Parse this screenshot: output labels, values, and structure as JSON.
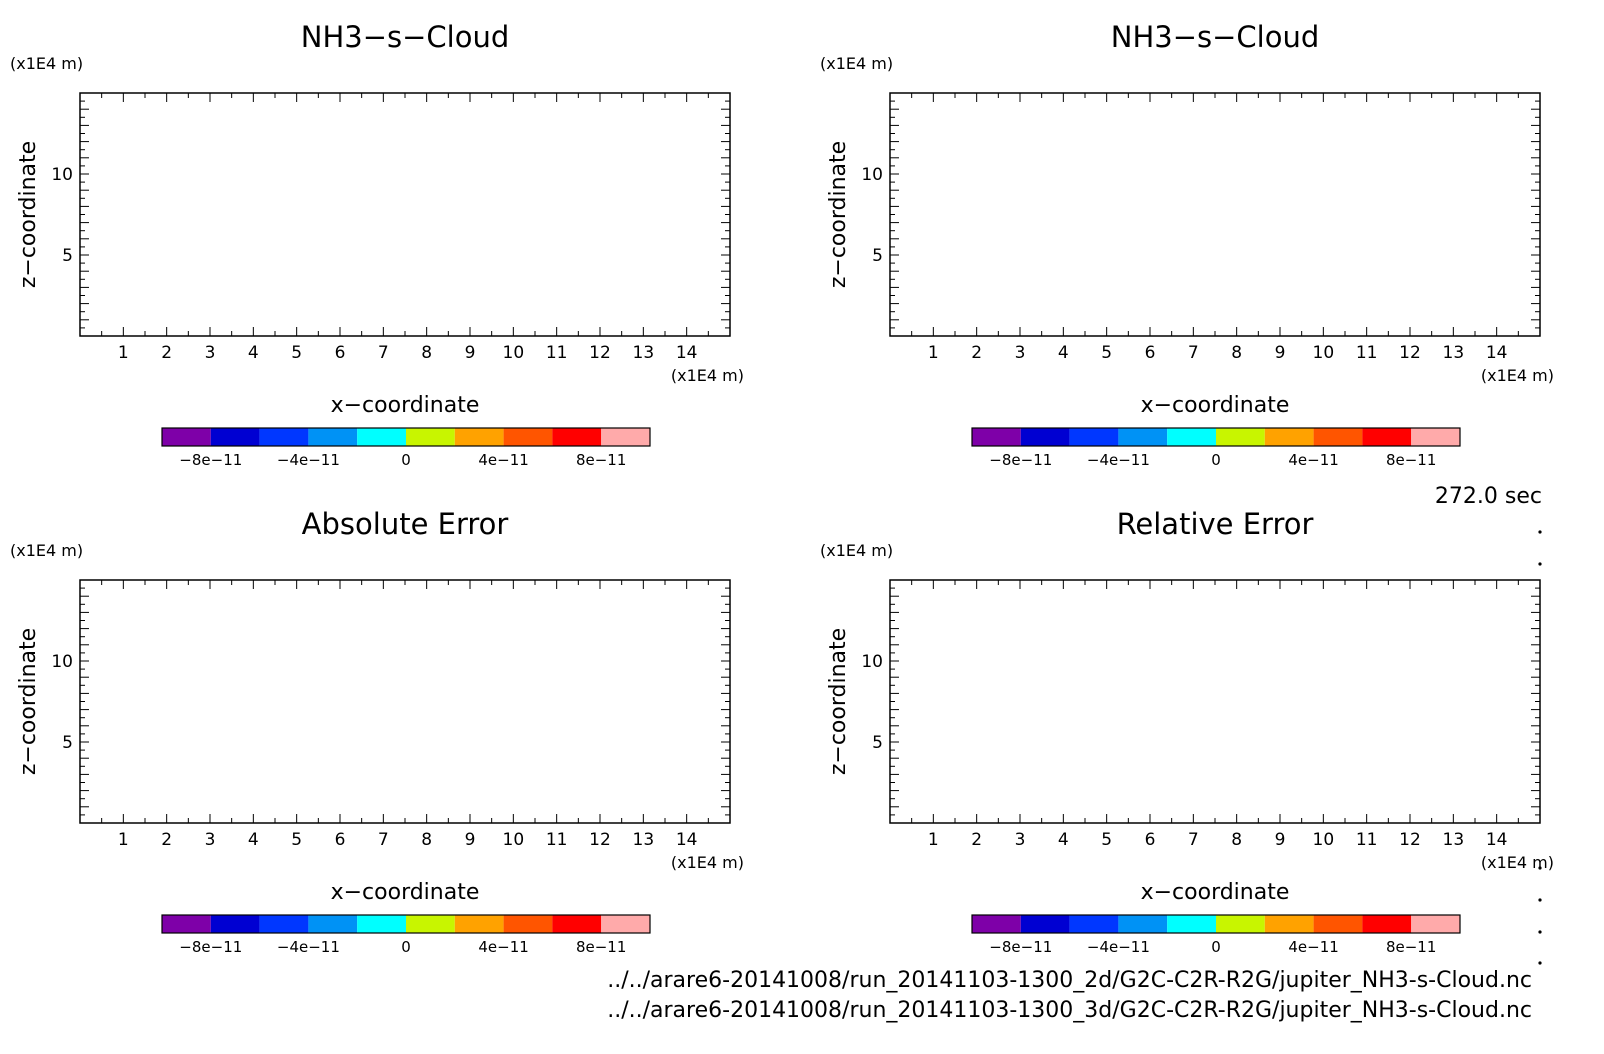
{
  "panel_title": "NH3-s-Cloud",
  "scale_label": "(x1E4 m)",
  "x_axis_label": "x-coordinate",
  "z_axis_label": "z-coordinate",
  "time_label": "272.0 sec",
  "footer": {
    "file_2d": "../../arare6-20141008/run_20141103-1300_2d/G2C-C2R-R2G/jupiter_NH3-s-Cloud.nc",
    "file_3d": "../../arare6-20141008/run_20141103-1300_3d/G2C-C2R-R2G/jupiter_NH3-s-Cloud.nc"
  },
  "colors": {
    "axes": "#000000",
    "colorbar": [
      "#7e00a8",
      "#0000d2",
      "#0037ff",
      "#0092f5",
      "#00ffff",
      "#c8f500",
      "#ffa200",
      "#ff5500",
      "#ff0000",
      "#ffaaaa"
    ]
  },
  "chart_data": [
    {
      "type": "heatmap",
      "title": "NH3-s-Cloud",
      "xlabel": "x-coordinate",
      "ylabel": "z-coordinate",
      "x_unit": "(x1E4 m)",
      "y_unit": "(x1E4 m)",
      "xlim": [
        0,
        15
      ],
      "ylim": [
        0,
        15
      ],
      "xticks": [
        1,
        2,
        3,
        4,
        5,
        6,
        7,
        8,
        9,
        10,
        11,
        12,
        13,
        14
      ],
      "yticks": [
        5,
        10
      ],
      "field": [],
      "colorbar": {
        "levels": [
          -1e-10,
          -8e-11,
          -6e-11,
          -4e-11,
          -2e-11,
          0,
          2e-11,
          4e-11,
          6e-11,
          8e-11,
          1e-10
        ],
        "tick_labels": [
          "-8e-11",
          "-4e-11",
          "0",
          "4e-11",
          "8e-11"
        ]
      }
    },
    {
      "type": "heatmap",
      "title": "NH3-s-Cloud",
      "xlabel": "x-coordinate",
      "ylabel": "z-coordinate",
      "x_unit": "(x1E4 m)",
      "y_unit": "(x1E4 m)",
      "xlim": [
        0,
        15
      ],
      "ylim": [
        0,
        15
      ],
      "xticks": [
        1,
        2,
        3,
        4,
        5,
        6,
        7,
        8,
        9,
        10,
        11,
        12,
        13,
        14
      ],
      "yticks": [
        5,
        10
      ],
      "field": [],
      "colorbar": {
        "levels": [
          -1e-10,
          -8e-11,
          -6e-11,
          -4e-11,
          -2e-11,
          0,
          2e-11,
          4e-11,
          6e-11,
          8e-11,
          1e-10
        ],
        "tick_labels": [
          "-8e-11",
          "-4e-11",
          "0",
          "4e-11",
          "8e-11"
        ]
      }
    },
    {
      "type": "heatmap",
      "title": "Absolute Error",
      "xlabel": "x-coordinate",
      "ylabel": "z-coordinate",
      "x_unit": "(x1E4 m)",
      "y_unit": "(x1E4 m)",
      "xlim": [
        0,
        15
      ],
      "ylim": [
        0,
        15
      ],
      "xticks": [
        1,
        2,
        3,
        4,
        5,
        6,
        7,
        8,
        9,
        10,
        11,
        12,
        13,
        14
      ],
      "yticks": [
        5,
        10
      ],
      "field": [],
      "colorbar": {
        "levels": [
          -1e-10,
          -8e-11,
          -6e-11,
          -4e-11,
          -2e-11,
          0,
          2e-11,
          4e-11,
          6e-11,
          8e-11,
          1e-10
        ],
        "tick_labels": [
          "-8e-11",
          "-4e-11",
          "0",
          "4e-11",
          "8e-11"
        ]
      }
    },
    {
      "type": "heatmap",
      "title": "Relative Error",
      "xlabel": "x-coordinate",
      "ylabel": "z-coordinate",
      "x_unit": "(x1E4 m)",
      "y_unit": "(x1E4 m)",
      "xlim": [
        0,
        15
      ],
      "ylim": [
        0,
        15
      ],
      "xticks": [
        1,
        2,
        3,
        4,
        5,
        6,
        7,
        8,
        9,
        10,
        11,
        12,
        13,
        14
      ],
      "yticks": [
        5,
        10
      ],
      "field": [],
      "colorbar": {
        "levels": [
          -1e-10,
          -8e-11,
          -6e-11,
          -4e-11,
          -2e-11,
          0,
          2e-11,
          4e-11,
          6e-11,
          8e-11,
          1e-10
        ],
        "tick_labels": [
          "-8e-11",
          "-4e-11",
          "0",
          "4e-11",
          "8e-11"
        ]
      }
    }
  ]
}
